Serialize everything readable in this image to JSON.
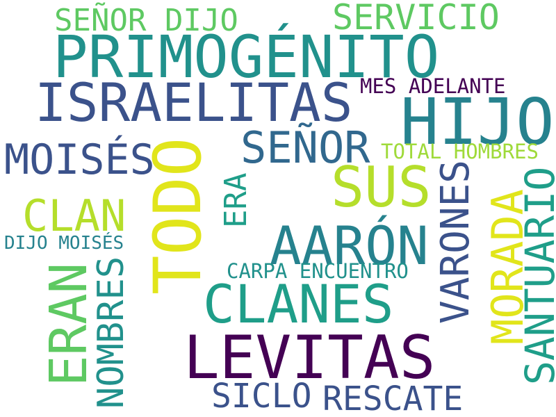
{
  "palette": {
    "dark_purple": "#440154",
    "indigo": "#3b528b",
    "slate_blue": "#31688e",
    "teal_blue": "#26828e",
    "teal": "#21918c",
    "green_teal": "#1f9e89",
    "green": "#5ec962",
    "lime": "#9fda3a",
    "yellow_green": "#b5de2b",
    "yellow": "#e1e51b"
  },
  "words": {
    "senor_dijo": "SEÑOR DIJO",
    "servicio": "SERVICIO",
    "primogenito": "PRIMOGÉNITO",
    "israelitas": "ISRAELITAS",
    "mes_adelante": "MES ADELANTE",
    "hijo": "HIJO",
    "moises": "MOISÉS",
    "todo": "TODO",
    "senor": "SEÑOR",
    "total_hombres": "TOTAL HOMBRES",
    "sus": "SUS",
    "clan": "CLAN",
    "era": "ERA",
    "varones": "VARONES",
    "morada": "MORADA",
    "santuario": "SANTUARIO",
    "dijo_moises": "DIJO MOISÉS",
    "aaron": "AARÓN",
    "eran": "ERAN",
    "nombres": "NOMBRES",
    "carpa_encuentro": "CARPA ENCUENTRO",
    "clanes": "CLANES",
    "levitas": "LEVITAS",
    "siclo": "SICLO",
    "rescate": "RESCATE"
  }
}
